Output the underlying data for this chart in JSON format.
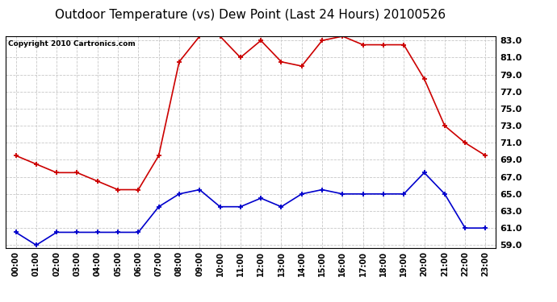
{
  "title": "Outdoor Temperature (vs) Dew Point (Last 24 Hours) 20100526",
  "copyright_text": "Copyright 2010 Cartronics.com",
  "hours": [
    "00:00",
    "01:00",
    "02:00",
    "03:00",
    "04:00",
    "05:00",
    "06:00",
    "07:00",
    "08:00",
    "09:00",
    "10:00",
    "11:00",
    "12:00",
    "13:00",
    "14:00",
    "15:00",
    "16:00",
    "17:00",
    "18:00",
    "19:00",
    "20:00",
    "21:00",
    "22:00",
    "23:00"
  ],
  "temp": [
    69.5,
    68.5,
    67.5,
    67.5,
    66.5,
    65.5,
    65.5,
    69.5,
    80.5,
    83.5,
    83.5,
    81.0,
    83.0,
    80.5,
    80.0,
    83.0,
    83.5,
    82.5,
    82.5,
    82.5,
    78.5,
    73.0,
    71.0,
    69.5
  ],
  "dew": [
    60.5,
    59.0,
    60.5,
    60.5,
    60.5,
    60.5,
    60.5,
    63.5,
    65.0,
    65.5,
    63.5,
    63.5,
    64.5,
    63.5,
    65.0,
    65.5,
    65.0,
    65.0,
    65.0,
    65.0,
    67.5,
    65.0,
    61.0,
    61.0
  ],
  "temp_color": "#cc0000",
  "dew_color": "#0000cc",
  "ylim_min": 59.0,
  "ylim_max": 83.0,
  "yticks": [
    59.0,
    61.0,
    63.0,
    65.0,
    67.0,
    69.0,
    71.0,
    73.0,
    75.0,
    77.0,
    79.0,
    81.0,
    83.0
  ],
  "background_color": "#ffffff",
  "grid_color": "#c8c8c8",
  "title_fontsize": 11,
  "copyright_fontsize": 6.5,
  "tick_fontsize": 7,
  "ytick_fontsize": 8
}
